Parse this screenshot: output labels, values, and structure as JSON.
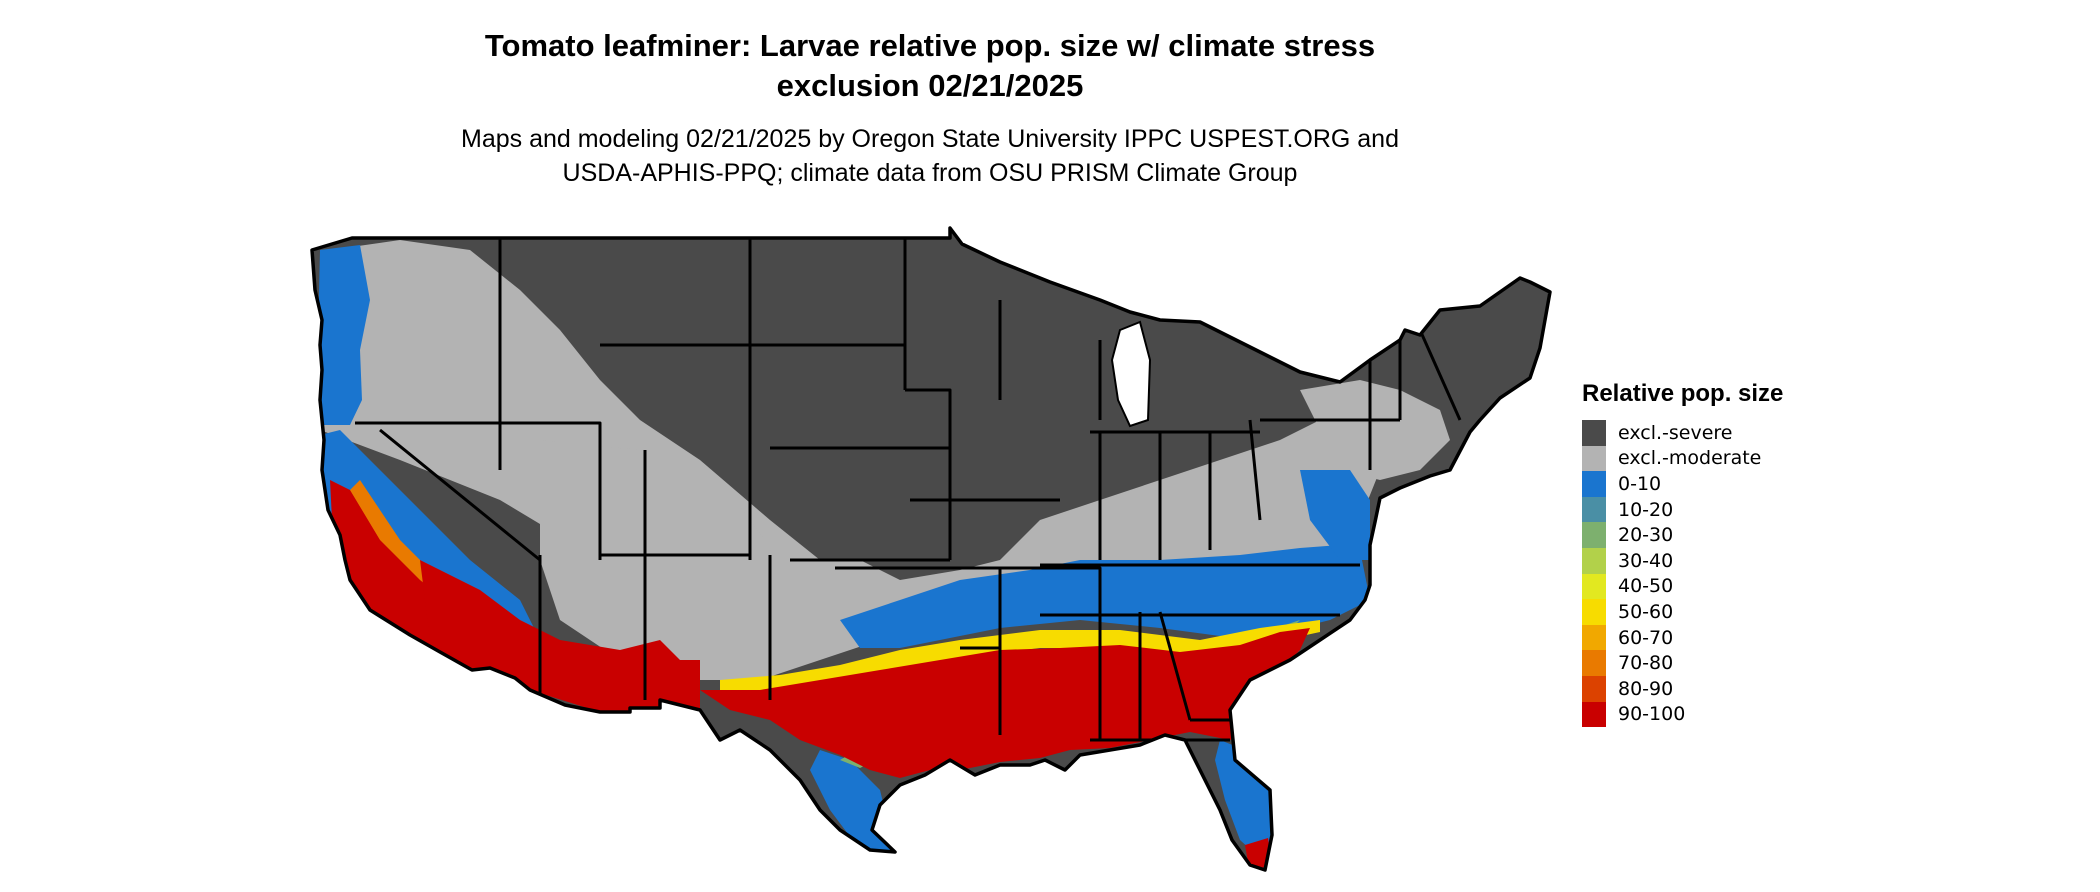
{
  "title_line1": "Tomato leafminer: Larvae relative pop. size w/ climate stress",
  "title_line2": "exclusion 02/21/2025",
  "subtitle_line1": "Maps and modeling 02/21/2025 by Oregon State University IPPC USPEST.ORG and",
  "subtitle_line2": "USDA-APHIS-PPQ; climate data from OSU PRISM Climate Group",
  "legend": {
    "title": "Relative pop. size",
    "items": [
      {
        "label": "excl.-severe",
        "color": "#4a4a4a"
      },
      {
        "label": "excl.-moderate",
        "color": "#b3b3b3"
      },
      {
        "label": "0-10",
        "color": "#1a75cf"
      },
      {
        "label": "10-20",
        "color": "#4a8fa5"
      },
      {
        "label": "20-30",
        "color": "#7db06e"
      },
      {
        "label": "30-40",
        "color": "#b2d14a"
      },
      {
        "label": "40-50",
        "color": "#e2e820"
      },
      {
        "label": "50-60",
        "color": "#f7dc00"
      },
      {
        "label": "60-70",
        "color": "#f1a800"
      },
      {
        "label": "70-80",
        "color": "#e97a00"
      },
      {
        "label": "80-90",
        "color": "#dc4200"
      },
      {
        "label": "90-100",
        "color": "#c90000"
      }
    ]
  }
}
